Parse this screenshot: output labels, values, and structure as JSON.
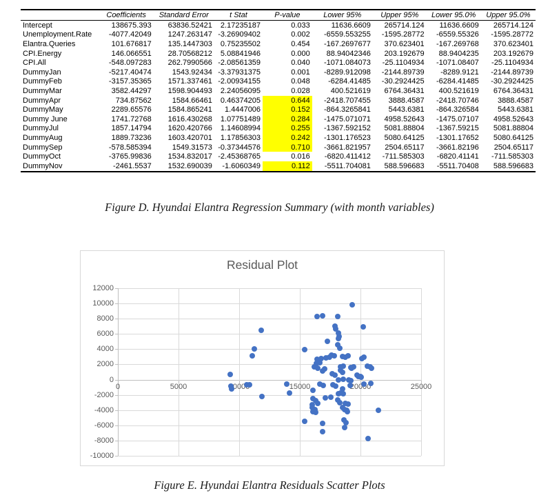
{
  "figure_d": {
    "caption": "Figure D. Hyundai Elantra Regression Summary (with month variables)",
    "table": {
      "headers": [
        "",
        "Coefficients",
        "Standard Error",
        "t Stat",
        "P-value",
        "Lower 95%",
        "Upper 95%",
        "Lower 95.0%",
        "Upper 95.0%"
      ],
      "highlight_color": "#FFFF00",
      "rows": [
        {
          "label": "Intercept",
          "values": [
            "138675.393",
            "63836.52421",
            "2.17235187",
            "0.033",
            "11636.6609",
            "265714.124",
            "11636.6609",
            "265714.124"
          ],
          "p_highlight": false
        },
        {
          "label": "Unemployment.Rate",
          "values": [
            "-4077.42049",
            "1247.263147",
            "-3.26909402",
            "0.002",
            "-6559.553255",
            "-1595.28772",
            "-6559.55326",
            "-1595.28772"
          ],
          "p_highlight": false
        },
        {
          "label": "Elantra.Queries",
          "values": [
            "101.676817",
            "135.1447303",
            "0.75235502",
            "0.454",
            "-167.2697677",
            "370.623401",
            "-167.269768",
            "370.623401"
          ],
          "p_highlight": false
        },
        {
          "label": "CPI.Energy",
          "values": [
            "146.066551",
            "28.70568212",
            "5.08841946",
            "0.000",
            "88.94042346",
            "203.192679",
            "88.9404235",
            "203.192679"
          ],
          "p_highlight": false
        },
        {
          "label": "CPI.All",
          "values": [
            "-548.097283",
            "262.7990566",
            "-2.08561359",
            "0.040",
            "-1071.084073",
            "-25.1104934",
            "-1071.08407",
            "-25.1104934"
          ],
          "p_highlight": false
        },
        {
          "label": "DummyJan",
          "values": [
            "-5217.40474",
            "1543.92434",
            "-3.37931375",
            "0.001",
            "-8289.912098",
            "-2144.89739",
            "-8289.9121",
            "-2144.89739"
          ],
          "p_highlight": false
        },
        {
          "label": "DummyFeb",
          "values": [
            "-3157.35365",
            "1571.337461",
            "-2.00934155",
            "0.048",
            "-6284.41485",
            "-30.2924425",
            "-6284.41485",
            "-30.2924425"
          ],
          "p_highlight": false
        },
        {
          "label": "DummyMar",
          "values": [
            "3582.44297",
            "1598.904493",
            "2.24056095",
            "0.028",
            "400.521619",
            "6764.36431",
            "400.521619",
            "6764.36431"
          ],
          "p_highlight": false
        },
        {
          "label": "DummyApr",
          "values": [
            "734.87562",
            "1584.66461",
            "0.46374205",
            "0.644",
            "-2418.707455",
            "3888.4587",
            "-2418.70746",
            "3888.4587"
          ],
          "p_highlight": true
        },
        {
          "label": "DummyMay",
          "values": [
            "2289.65576",
            "1584.865241",
            "1.4447006",
            "0.152",
            "-864.3265841",
            "5443.6381",
            "-864.326584",
            "5443.6381"
          ],
          "p_highlight": true
        },
        {
          "label": "Dummy June",
          "values": [
            "1741.72768",
            "1616.430268",
            "1.07751489",
            "0.284",
            "-1475.071071",
            "4958.52643",
            "-1475.07107",
            "4958.52643"
          ],
          "p_highlight": true
        },
        {
          "label": "DummyJul",
          "values": [
            "1857.14794",
            "1620.420766",
            "1.14608994",
            "0.255",
            "-1367.592152",
            "5081.88804",
            "-1367.59215",
            "5081.88804"
          ],
          "p_highlight": true
        },
        {
          "label": "DummyAug",
          "values": [
            "1889.73236",
            "1603.420701",
            "1.17856303",
            "0.242",
            "-1301.176523",
            "5080.64125",
            "-1301.17652",
            "5080.64125"
          ],
          "p_highlight": true
        },
        {
          "label": "DummySep",
          "values": [
            "-578.585394",
            "1549.31573",
            "-0.37344576",
            "0.710",
            "-3661.821957",
            "2504.65117",
            "-3661.82196",
            "2504.65117"
          ],
          "p_highlight": true
        },
        {
          "label": "DummyOct",
          "values": [
            "-3765.99836",
            "1534.832017",
            "-2.45368765",
            "0.016",
            "-6820.411412",
            "-711.585303",
            "-6820.41141",
            "-711.585303"
          ],
          "p_highlight": false
        },
        {
          "label": "DummyNov",
          "values": [
            "-2461.5537",
            "1532.690039",
            "-1.6060349",
            "0.112",
            "-5511.704081",
            "588.596683",
            "-5511.70408",
            "588.596683"
          ],
          "p_highlight": true
        }
      ]
    }
  },
  "figure_e": {
    "caption": "Figure E. Hyundai Elantra Residuals Scatter Plots"
  },
  "chart_data": {
    "type": "scatter",
    "title": "Residual Plot",
    "xlabel": "",
    "ylabel": "",
    "xlim": [
      0,
      25000
    ],
    "ylim": [
      -10000,
      12000
    ],
    "x_ticks": [
      0,
      5000,
      10000,
      15000,
      20000,
      25000
    ],
    "y_ticks": [
      12000,
      10000,
      8000,
      6000,
      4000,
      2000,
      0,
      -2000,
      -4000,
      -6000,
      -8000,
      -10000
    ],
    "grid": true,
    "legend": "none",
    "point_color": "#4472C4",
    "grid_color": "#d9d9d9",
    "axis_color": "#bfbfbf",
    "title_color": "#595959",
    "points": [
      [
        9250,
        700
      ],
      [
        9300,
        -900
      ],
      [
        9350,
        -1250
      ],
      [
        10600,
        -650
      ],
      [
        10850,
        -700
      ],
      [
        11100,
        3100
      ],
      [
        11270,
        4000
      ],
      [
        11800,
        6500
      ],
      [
        11900,
        -2200
      ],
      [
        13900,
        -550
      ],
      [
        14150,
        -1750
      ],
      [
        15380,
        -5480
      ],
      [
        15400,
        3900
      ],
      [
        16000,
        -3700
      ],
      [
        16050,
        -3340
      ],
      [
        16100,
        -1440
      ],
      [
        16100,
        -2490
      ],
      [
        16100,
        -4240
      ],
      [
        16200,
        1670
      ],
      [
        16250,
        -3940
      ],
      [
        16280,
        -2800
      ],
      [
        16330,
        -4300
      ],
      [
        16350,
        2150
      ],
      [
        16400,
        8300
      ],
      [
        16400,
        2700
      ],
      [
        16450,
        1500
      ],
      [
        16500,
        -3100
      ],
      [
        16650,
        2250
      ],
      [
        16650,
        -620
      ],
      [
        16750,
        2800
      ],
      [
        16850,
        1130
      ],
      [
        16860,
        -5760
      ],
      [
        16890,
        -6850
      ],
      [
        16900,
        8350
      ],
      [
        16950,
        -740
      ],
      [
        17050,
        1370
      ],
      [
        17080,
        -2430
      ],
      [
        17150,
        2850
      ],
      [
        17300,
        5000
      ],
      [
        17450,
        2940
      ],
      [
        17580,
        -2340
      ],
      [
        17600,
        3250
      ],
      [
        17650,
        770
      ],
      [
        17700,
        -680
      ],
      [
        17850,
        3100
      ],
      [
        17900,
        7050
      ],
      [
        17900,
        590
      ],
      [
        17950,
        6700
      ],
      [
        17950,
        -830
      ],
      [
        18100,
        8250
      ],
      [
        18100,
        4600
      ],
      [
        18140,
        -2640
      ],
      [
        18180,
        -1890
      ],
      [
        18200,
        6100
      ],
      [
        18200,
        -80
      ],
      [
        18250,
        5700
      ],
      [
        18200,
        5400
      ],
      [
        18300,
        4100
      ],
      [
        18330,
        -1740
      ],
      [
        18350,
        1190
      ],
      [
        18350,
        1670
      ],
      [
        18520,
        -1220
      ],
      [
        18520,
        -3700
      ],
      [
        18550,
        3030
      ],
      [
        18550,
        980
      ],
      [
        18560,
        -1830
      ],
      [
        18600,
        1790
      ],
      [
        18600,
        70
      ],
      [
        18650,
        -5290
      ],
      [
        18700,
        -3940
      ],
      [
        18750,
        2950
      ],
      [
        18750,
        -3090
      ],
      [
        18790,
        -5660
      ],
      [
        18710,
        -6320
      ],
      [
        18850,
        -4060
      ],
      [
        18940,
        -4240
      ],
      [
        18980,
        -3240
      ],
      [
        18280,
        -3030
      ],
      [
        19000,
        3090
      ],
      [
        19050,
        -20
      ],
      [
        19130,
        -740
      ],
      [
        19220,
        1580
      ],
      [
        19220,
        -140
      ],
      [
        19280,
        1490
      ],
      [
        19300,
        9800
      ],
      [
        19420,
        1670
      ],
      [
        19730,
        590
      ],
      [
        19850,
        370
      ],
      [
        19980,
        370
      ],
      [
        20080,
        280
      ],
      [
        20100,
        2790
      ],
      [
        20270,
        -620
      ],
      [
        20280,
        2940
      ],
      [
        20200,
        6900
      ],
      [
        20550,
        1790
      ],
      [
        20640,
        -7700
      ],
      [
        20800,
        1670
      ],
      [
        20870,
        -530
      ],
      [
        20930,
        1490
      ],
      [
        21460,
        -4060
      ]
    ]
  }
}
